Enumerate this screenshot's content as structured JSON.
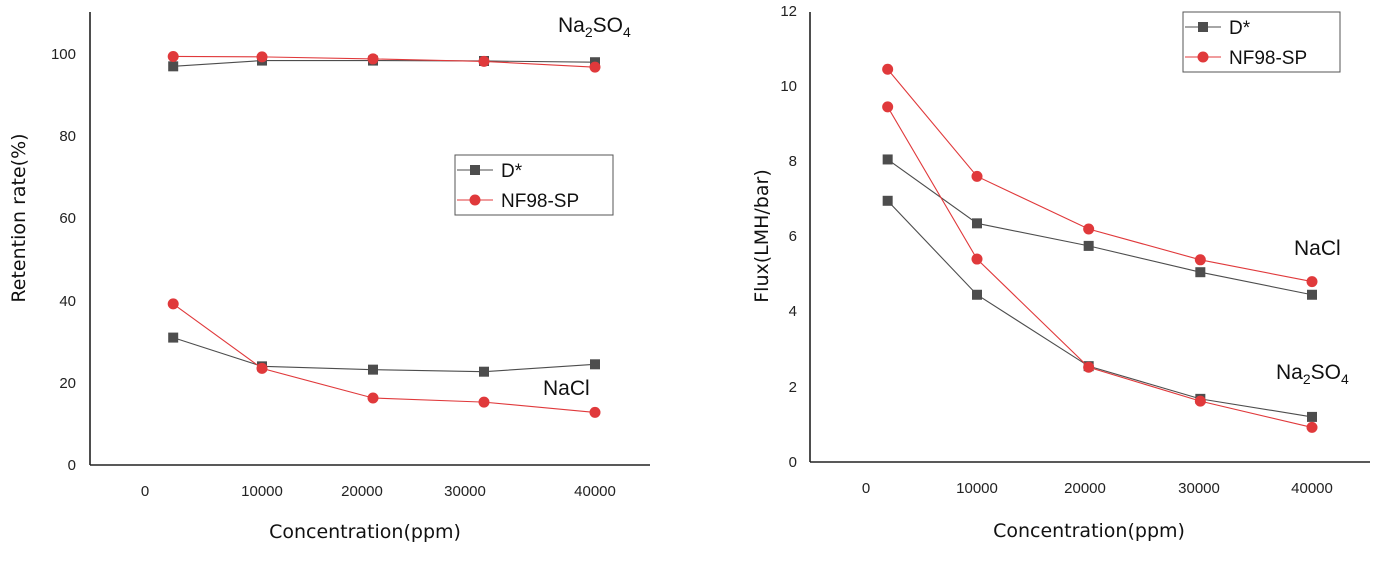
{
  "chart_data": [
    {
      "type": "line",
      "title": "",
      "xlabel": "Concentration(ppm)",
      "ylabel": "Retention rate(%)",
      "xlim": [
        -5000,
        45000
      ],
      "ylim": [
        0,
        110
      ],
      "x_ticks": [
        "0",
        "10000",
        "20000",
        "30000",
        "40000"
      ],
      "y_ticks": [
        "0",
        "20",
        "40",
        "60",
        "80",
        "100"
      ],
      "categories_x": [
        2000,
        10000,
        20000,
        30000,
        40000
      ],
      "legend": [
        "D*",
        "NF98-SP"
      ],
      "annotations": [
        {
          "text": "Na",
          "sub": "2",
          "text2": "SO",
          "sub2": "4"
        },
        {
          "text": "NaCl"
        }
      ],
      "series": [
        {
          "name": "D*",
          "group": "Na2SO4",
          "color": "#4d4d4d",
          "marker": "square",
          "values": [
            97,
            98.4,
            98.4,
            98.3,
            98
          ]
        },
        {
          "name": "NF98-SP",
          "group": "Na2SO4",
          "color": "#e0393b",
          "marker": "circle",
          "values": [
            99.4,
            99.3,
            98.8,
            98.2,
            96.8
          ]
        },
        {
          "name": "D*",
          "group": "NaCl",
          "color": "#4d4d4d",
          "marker": "square",
          "values": [
            31,
            24,
            23.2,
            22.7,
            24.5
          ]
        },
        {
          "name": "NF98-SP",
          "group": "NaCl",
          "color": "#e0393b",
          "marker": "circle",
          "values": [
            39.2,
            23.5,
            16.3,
            15.3,
            12.8
          ]
        }
      ]
    },
    {
      "type": "line",
      "title": "",
      "xlabel": "Concentration(ppm)",
      "ylabel": "Flux(LMH/bar)",
      "xlim": [
        -5000,
        45000
      ],
      "ylim": [
        0,
        12
      ],
      "x_ticks": [
        "0",
        "10000",
        "20000",
        "30000",
        "40000"
      ],
      "y_ticks": [
        "0",
        "2",
        "4",
        "6",
        "8",
        "10",
        "12"
      ],
      "categories_x": [
        2000,
        10000,
        20000,
        30000,
        40000
      ],
      "legend": [
        "D*",
        "NF98-SP"
      ],
      "annotations": [
        {
          "text": "NaCl"
        },
        {
          "text": "Na",
          "sub": "2",
          "text2": "SO",
          "sub2": "4"
        }
      ],
      "series": [
        {
          "name": "D*",
          "group": "NaCl",
          "color": "#4d4d4d",
          "marker": "square",
          "values": [
            8.05,
            6.35,
            5.75,
            5.05,
            4.45
          ]
        },
        {
          "name": "NF98-SP",
          "group": "NaCl",
          "color": "#e0393b",
          "marker": "circle",
          "values": [
            10.45,
            7.6,
            6.2,
            5.38,
            4.8
          ]
        },
        {
          "name": "D*",
          "group": "Na2SO4",
          "color": "#4d4d4d",
          "marker": "square",
          "values": [
            6.95,
            4.45,
            2.55,
            1.68,
            1.2
          ]
        },
        {
          "name": "NF98-SP",
          "group": "Na2SO4",
          "color": "#e0393b",
          "marker": "circle",
          "values": [
            9.45,
            5.4,
            2.52,
            1.62,
            0.92
          ]
        }
      ]
    }
  ]
}
